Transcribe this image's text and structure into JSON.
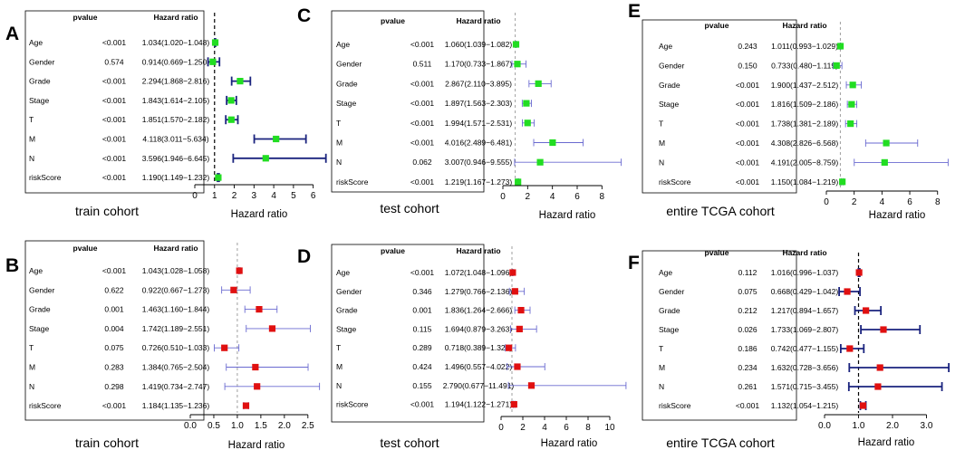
{
  "figure_title": "",
  "chart_data": [
    {
      "panel": "A",
      "type": "forest",
      "cohort_label": "train cohort",
      "xlabel": "Hazard ratio",
      "xlim": [
        0,
        6.2
      ],
      "ticks": [
        0,
        1,
        2,
        3,
        4,
        5,
        6
      ],
      "ticklabels": [
        "0",
        "1",
        "2",
        "3",
        "4",
        "5",
        "6"
      ],
      "header": {
        "pvalue": "pvalue",
        "hr": "Hazard ratio"
      },
      "ref_line_style": "dashed-black",
      "marker_color": "#22dd22",
      "ci_color": "#1a237e",
      "ci_weight": "bold",
      "rows": [
        {
          "label": "Age",
          "pvalue": "<0.001",
          "hr_text": "1.034(1.020−1.048)",
          "hr": 1.034,
          "lo": 1.02,
          "hi": 1.048
        },
        {
          "label": "Gender",
          "pvalue": "0.574",
          "hr_text": "0.914(0.669−1.250)",
          "hr": 0.914,
          "lo": 0.669,
          "hi": 1.25
        },
        {
          "label": "Grade",
          "pvalue": "<0.001",
          "hr_text": "2.294(1.868−2.816)",
          "hr": 2.294,
          "lo": 1.868,
          "hi": 2.816
        },
        {
          "label": "Stage",
          "pvalue": "<0.001",
          "hr_text": "1.843(1.614−2.105)",
          "hr": 1.843,
          "lo": 1.614,
          "hi": 2.105
        },
        {
          "label": "T",
          "pvalue": "<0.001",
          "hr_text": "1.851(1.570−2.182)",
          "hr": 1.851,
          "lo": 1.57,
          "hi": 2.182
        },
        {
          "label": "M",
          "pvalue": "<0.001",
          "hr_text": "4.118(3.011−5.634)",
          "hr": 4.118,
          "lo": 3.011,
          "hi": 5.634
        },
        {
          "label": "N",
          "pvalue": "<0.001",
          "hr_text": "3.596(1.946−6.645)",
          "hr": 3.596,
          "lo": 1.946,
          "hi": 6.645
        },
        {
          "label": "riskScore",
          "pvalue": "<0.001",
          "hr_text": "1.190(1.149−1.232)",
          "hr": 1.19,
          "lo": 1.149,
          "hi": 1.232
        }
      ]
    },
    {
      "panel": "B",
      "type": "forest",
      "cohort_label": "train cohort",
      "xlabel": "Hazard ratio",
      "xlim": [
        0,
        2.6
      ],
      "ticks": [
        0,
        0.5,
        1,
        1.5,
        2,
        2.5
      ],
      "ticklabels": [
        "0.0",
        "0.5",
        "1.0",
        "1.5",
        "2.0",
        "2.5"
      ],
      "header": {
        "pvalue": "pvalue",
        "hr": "Hazard ratio"
      },
      "ref_line_style": "dashed-gray",
      "marker_color": "#e01010",
      "ci_color": "#6a6ad0",
      "ci_weight": "thin",
      "rows": [
        {
          "label": "Age",
          "pvalue": "<0.001",
          "hr_text": "1.043(1.028−1.058)",
          "hr": 1.043,
          "lo": 1.028,
          "hi": 1.058
        },
        {
          "label": "Gender",
          "pvalue": "0.622",
          "hr_text": "0.922(0.667−1.273)",
          "hr": 0.922,
          "lo": 0.667,
          "hi": 1.273
        },
        {
          "label": "Grade",
          "pvalue": "0.001",
          "hr_text": "1.463(1.160−1.844)",
          "hr": 1.463,
          "lo": 1.16,
          "hi": 1.844
        },
        {
          "label": "Stage",
          "pvalue": "0.004",
          "hr_text": "1.742(1.189−2.551)",
          "hr": 1.742,
          "lo": 1.189,
          "hi": 2.551
        },
        {
          "label": "T",
          "pvalue": "0.075",
          "hr_text": "0.726(0.510−1.033)",
          "hr": 0.726,
          "lo": 0.51,
          "hi": 1.033
        },
        {
          "label": "M",
          "pvalue": "0.283",
          "hr_text": "1.384(0.765−2.504)",
          "hr": 1.384,
          "lo": 0.765,
          "hi": 2.504
        },
        {
          "label": "N",
          "pvalue": "0.298",
          "hr_text": "1.419(0.734−2.747)",
          "hr": 1.419,
          "lo": 0.734,
          "hi": 2.747
        },
        {
          "label": "riskScore",
          "pvalue": "<0.001",
          "hr_text": "1.184(1.135−1.236)",
          "hr": 1.184,
          "lo": 1.135,
          "hi": 1.236
        }
      ]
    },
    {
      "panel": "C",
      "type": "forest",
      "cohort_label": "test cohort",
      "xlabel": "Hazard ratio",
      "xlim": [
        0,
        9
      ],
      "ticks": [
        0,
        2,
        4,
        6,
        8
      ],
      "ticklabels": [
        "0",
        "2",
        "4",
        "6",
        "8"
      ],
      "header": {
        "pvalue": "pvalue",
        "hr": "Hazard ratio"
      },
      "ref_line_style": "dashed-gray",
      "marker_color": "#22dd22",
      "ci_color": "#6a6ad0",
      "ci_weight": "thin",
      "rows": [
        {
          "label": "Age",
          "pvalue": "<0.001",
          "hr_text": "1.060(1.039−1.082)",
          "hr": 1.06,
          "lo": 1.039,
          "hi": 1.082
        },
        {
          "label": "Gender",
          "pvalue": "0.511",
          "hr_text": "1.170(0.733−1.867)",
          "hr": 1.17,
          "lo": 0.733,
          "hi": 1.867
        },
        {
          "label": "Grade",
          "pvalue": "<0.001",
          "hr_text": "2.867(2.110−3.895)",
          "hr": 2.867,
          "lo": 2.11,
          "hi": 3.895
        },
        {
          "label": "Stage",
          "pvalue": "<0.001",
          "hr_text": "1.897(1.563−2.303)",
          "hr": 1.897,
          "lo": 1.563,
          "hi": 2.303
        },
        {
          "label": "T",
          "pvalue": "<0.001",
          "hr_text": "1.994(1.571−2.531)",
          "hr": 1.994,
          "lo": 1.571,
          "hi": 2.531
        },
        {
          "label": "M",
          "pvalue": "<0.001",
          "hr_text": "4.016(2.489−6.481)",
          "hr": 4.016,
          "lo": 2.489,
          "hi": 6.481
        },
        {
          "label": "N",
          "pvalue": "0.062",
          "hr_text": "3.007(0.946−9.555)",
          "hr": 3.007,
          "lo": 0.946,
          "hi": 9.555
        },
        {
          "label": "riskScore",
          "pvalue": "<0.001",
          "hr_text": "1.219(1.167−1.273)",
          "hr": 1.219,
          "lo": 1.167,
          "hi": 1.273
        }
      ]
    },
    {
      "panel": "D",
      "type": "forest",
      "cohort_label": "test cohort",
      "xlabel": "Hazard ratio",
      "xlim": [
        0,
        11
      ],
      "ticks": [
        0,
        2,
        4,
        6,
        8,
        10
      ],
      "ticklabels": [
        "0",
        "2",
        "4",
        "6",
        "8",
        "10"
      ],
      "header": {
        "pvalue": "pvalue",
        "hr": "Hazard ratio"
      },
      "ref_line_style": "dashed-gray",
      "marker_color": "#e01010",
      "ci_color": "#6a6ad0",
      "ci_weight": "thin",
      "rows": [
        {
          "label": "Age",
          "pvalue": "<0.001",
          "hr_text": "1.072(1.048−1.096)",
          "hr": 1.072,
          "lo": 1.048,
          "hi": 1.096
        },
        {
          "label": "Gender",
          "pvalue": "0.346",
          "hr_text": "1.279(0.766−2.136)",
          "hr": 1.279,
          "lo": 0.766,
          "hi": 2.136
        },
        {
          "label": "Grade",
          "pvalue": "0.001",
          "hr_text": "1.836(1.264−2.666)",
          "hr": 1.836,
          "lo": 1.264,
          "hi": 2.666
        },
        {
          "label": "Stage",
          "pvalue": "0.115",
          "hr_text": "1.694(0.879−3.263)",
          "hr": 1.694,
          "lo": 0.879,
          "hi": 3.263
        },
        {
          "label": "T",
          "pvalue": "0.289",
          "hr_text": "0.718(0.389−1.325)",
          "hr": 0.718,
          "lo": 0.389,
          "hi": 1.325
        },
        {
          "label": "M",
          "pvalue": "0.424",
          "hr_text": "1.496(0.557−4.022)",
          "hr": 1.496,
          "lo": 0.557,
          "hi": 4.022
        },
        {
          "label": "N",
          "pvalue": "0.155",
          "hr_text": "2.790(0.677−11.491)",
          "hr": 2.79,
          "lo": 0.677,
          "hi": 11.491
        },
        {
          "label": "riskScore",
          "pvalue": "<0.001",
          "hr_text": "1.194(1.122−1.271)",
          "hr": 1.194,
          "lo": 1.122,
          "hi": 1.271
        }
      ]
    },
    {
      "panel": "E",
      "type": "forest",
      "cohort_label": "entire TCGA cohort",
      "xlabel": "Hazard ratio",
      "xlim": [
        0,
        8.8
      ],
      "ticks": [
        0,
        2,
        4,
        6,
        8
      ],
      "ticklabels": [
        "0",
        "2",
        "4",
        "6",
        "8"
      ],
      "header": {
        "pvalue": "pvalue",
        "hr": "Hazard ratio"
      },
      "ref_line_style": "dashed-gray",
      "marker_color": "#22dd22",
      "ci_color": "#6a6ad0",
      "ci_weight": "thin",
      "rows": [
        {
          "label": "Age",
          "pvalue": "0.243",
          "hr_text": "1.011(0.993−1.029)",
          "hr": 1.011,
          "lo": 0.993,
          "hi": 1.029
        },
        {
          "label": "Gender",
          "pvalue": "0.150",
          "hr_text": "0.733(0.480−1.119)",
          "hr": 0.733,
          "lo": 0.48,
          "hi": 1.119
        },
        {
          "label": "Grade",
          "pvalue": "<0.001",
          "hr_text": "1.900(1.437−2.512)",
          "hr": 1.9,
          "lo": 1.437,
          "hi": 2.512
        },
        {
          "label": "Stage",
          "pvalue": "<0.001",
          "hr_text": "1.816(1.509−2.186)",
          "hr": 1.816,
          "lo": 1.509,
          "hi": 2.186
        },
        {
          "label": "T",
          "pvalue": "<0.001",
          "hr_text": "1.738(1.381−2.189)",
          "hr": 1.738,
          "lo": 1.381,
          "hi": 2.189
        },
        {
          "label": "M",
          "pvalue": "<0.001",
          "hr_text": "4.308(2.826−6.568)",
          "hr": 4.308,
          "lo": 2.826,
          "hi": 6.568
        },
        {
          "label": "N",
          "pvalue": "<0.001",
          "hr_text": "4.191(2.005−8.759)",
          "hr": 4.191,
          "lo": 2.005,
          "hi": 8.759
        },
        {
          "label": "riskScore",
          "pvalue": "<0.001",
          "hr_text": "1.150(1.084−1.219)",
          "hr": 1.15,
          "lo": 1.084,
          "hi": 1.219
        }
      ]
    },
    {
      "panel": "F",
      "type": "forest",
      "cohort_label": "entire TCGA cohort",
      "xlabel": "Hazard ratio",
      "xlim": [
        0,
        3.6
      ],
      "ticks": [
        0,
        1,
        2,
        3
      ],
      "ticklabels": [
        "0.0",
        "1.0",
        "2.0",
        "3.0"
      ],
      "header": {
        "pvalue": "pvalue",
        "hr": "Hazard ratio"
      },
      "ref_line_style": "dashed-black",
      "marker_color": "#e01010",
      "ci_color": "#1a237e",
      "ci_weight": "bold",
      "rows": [
        {
          "label": "Age",
          "pvalue": "0.112",
          "hr_text": "1.016(0.996−1.037)",
          "hr": 1.016,
          "lo": 0.996,
          "hi": 1.037
        },
        {
          "label": "Gender",
          "pvalue": "0.075",
          "hr_text": "0.668(0.429−1.042)",
          "hr": 0.668,
          "lo": 0.429,
          "hi": 1.042
        },
        {
          "label": "Grade",
          "pvalue": "0.212",
          "hr_text": "1.217(0.894−1.657)",
          "hr": 1.217,
          "lo": 0.894,
          "hi": 1.657
        },
        {
          "label": "Stage",
          "pvalue": "0.026",
          "hr_text": "1.733(1.069−2.807)",
          "hr": 1.733,
          "lo": 1.069,
          "hi": 2.807
        },
        {
          "label": "T",
          "pvalue": "0.186",
          "hr_text": "0.742(0.477−1.155)",
          "hr": 0.742,
          "lo": 0.477,
          "hi": 1.155
        },
        {
          "label": "M",
          "pvalue": "0.234",
          "hr_text": "1.632(0.728−3.656)",
          "hr": 1.632,
          "lo": 0.728,
          "hi": 3.656
        },
        {
          "label": "N",
          "pvalue": "0.261",
          "hr_text": "1.571(0.715−3.455)",
          "hr": 1.571,
          "lo": 0.715,
          "hi": 3.455
        },
        {
          "label": "riskScore",
          "pvalue": "<0.001",
          "hr_text": "1.132(1.054−1.215)",
          "hr": 1.132,
          "lo": 1.054,
          "hi": 1.215
        }
      ]
    }
  ]
}
